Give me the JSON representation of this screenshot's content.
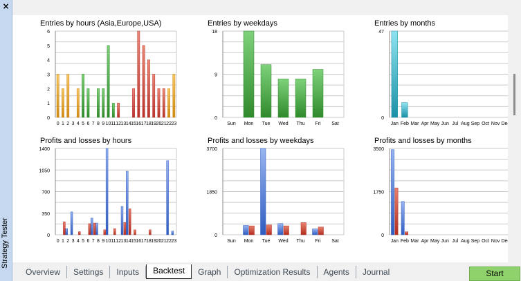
{
  "window": {
    "side_title": "Strategy Tester",
    "close_glyph": "×"
  },
  "tabs": [
    {
      "label": "Overview",
      "active": false
    },
    {
      "label": "Settings",
      "active": false
    },
    {
      "label": "Inputs",
      "active": false
    },
    {
      "label": "Backtest",
      "active": true
    },
    {
      "label": "Graph",
      "active": false
    },
    {
      "label": "Optimization Results",
      "active": false
    },
    {
      "label": "Agents",
      "active": false
    },
    {
      "label": "Journal",
      "active": false
    }
  ],
  "start_label": "Start",
  "colors": {
    "start_button": "#8fd16b",
    "sidebar": "#c5d8ef"
  },
  "chart_data": [
    {
      "id": "entries-hours",
      "type": "bar",
      "title": "Entries by hours (Asia,Europe,USA)",
      "categories": [
        "0",
        "1",
        "2",
        "3",
        "4",
        "5",
        "6",
        "7",
        "8",
        "9",
        "10",
        "11",
        "12",
        "13",
        "14",
        "15",
        "16",
        "17",
        "18",
        "19",
        "20",
        "21",
        "22",
        "23"
      ],
      "yticks": [
        "0",
        "1",
        "2",
        "3",
        "4",
        "5",
        "6"
      ],
      "ylim": [
        0,
        6
      ],
      "series": [
        {
          "values": [
            3,
            2,
            3,
            0,
            2,
            3,
            2,
            0,
            2,
            2,
            5,
            1,
            1,
            0,
            0,
            2,
            6,
            5,
            4,
            3,
            2,
            2,
            2,
            3
          ],
          "colors": [
            "orange",
            "orange",
            "orange",
            "orange",
            "orange",
            "green",
            "green",
            "green",
            "green",
            "green",
            "green",
            "green",
            "red",
            "red",
            "red",
            "red",
            "red",
            "red",
            "red",
            "red",
            "red",
            "red",
            "orange",
            "orange"
          ]
        }
      ],
      "grid": true
    },
    {
      "id": "entries-weekdays",
      "type": "bar",
      "title": "Entries by weekdays",
      "categories": [
        "Sun",
        "Mon",
        "Tue",
        "Wed",
        "Thu",
        "Fri",
        "Sat"
      ],
      "yticks": [
        "0",
        "9",
        "18"
      ],
      "ylim": [
        0,
        18
      ],
      "series": [
        {
          "values": [
            0,
            18,
            11,
            8,
            8,
            10,
            0
          ],
          "colors": [
            "green"
          ]
        }
      ],
      "grid": true
    },
    {
      "id": "entries-months",
      "type": "bar",
      "title": "Entries by months",
      "categories": [
        "Jan",
        "Feb",
        "Mar",
        "Apr",
        "May",
        "Jun",
        "Jul",
        "Aug",
        "Sep",
        "Oct",
        "Nov",
        "Dec"
      ],
      "yticks": [
        "0",
        "47"
      ],
      "ylim": [
        0,
        47
      ],
      "series": [
        {
          "values": [
            47,
            8,
            0,
            0,
            0,
            0,
            0,
            0,
            0,
            0,
            0,
            0
          ],
          "colors": [
            "teal"
          ]
        }
      ],
      "grid": true
    },
    {
      "id": "pl-hours",
      "type": "bar",
      "title": "Profits and losses by hours",
      "categories": [
        "0",
        "1",
        "2",
        "3",
        "4",
        "5",
        "6",
        "7",
        "8",
        "9",
        "10",
        "11",
        "12",
        "13",
        "14",
        "15",
        "16",
        "17",
        "18",
        "19",
        "20",
        "21",
        "22",
        "23"
      ],
      "yticks": [
        "0",
        "350",
        "700",
        "1050",
        "1400"
      ],
      "ylim": [
        0,
        1400
      ],
      "series": [
        {
          "name": "profit",
          "values": [
            0,
            0,
            100,
            370,
            0,
            0,
            0,
            270,
            190,
            0,
            1400,
            0,
            0,
            460,
            1030,
            0,
            0,
            0,
            0,
            0,
            0,
            0,
            1200,
            60
          ],
          "colors": [
            "blue"
          ]
        },
        {
          "name": "loss",
          "values": [
            0,
            210,
            0,
            0,
            50,
            0,
            180,
            190,
            0,
            80,
            0,
            100,
            0,
            200,
            420,
            80,
            0,
            0,
            80,
            0,
            0,
            0,
            0,
            0
          ],
          "colors": [
            "red"
          ]
        }
      ],
      "grid": true
    },
    {
      "id": "pl-weekdays",
      "type": "bar",
      "title": "Profits and losses by weekdays",
      "categories": [
        "Sun",
        "Mon",
        "Tue",
        "Wed",
        "Thu",
        "Fri",
        "Sat"
      ],
      "yticks": [
        "0",
        "1850",
        "3700"
      ],
      "ylim": [
        0,
        3700
      ],
      "series": [
        {
          "name": "profit",
          "values": [
            0,
            400,
            3700,
            480,
            0,
            250,
            0
          ],
          "colors": [
            "blue"
          ]
        },
        {
          "name": "loss",
          "values": [
            0,
            380,
            420,
            380,
            520,
            330,
            0
          ],
          "colors": [
            "red"
          ]
        }
      ],
      "grid": true
    },
    {
      "id": "pl-months",
      "type": "bar",
      "title": "Profits and losses by months",
      "categories": [
        "Jan",
        "Feb",
        "Mar",
        "Apr",
        "May",
        "Jun",
        "Jul",
        "Aug",
        "Sep",
        "Oct",
        "Nov",
        "Dec"
      ],
      "yticks": [
        "0",
        "1750",
        "3500"
      ],
      "ylim": [
        0,
        3500
      ],
      "series": [
        {
          "name": "profit",
          "values": [
            3450,
            1350,
            0,
            0,
            0,
            0,
            0,
            0,
            0,
            0,
            0,
            0
          ],
          "colors": [
            "blue"
          ]
        },
        {
          "name": "loss",
          "values": [
            1900,
            120,
            0,
            0,
            0,
            0,
            0,
            0,
            0,
            0,
            0,
            0
          ],
          "colors": [
            "red"
          ]
        }
      ],
      "grid": true
    }
  ]
}
